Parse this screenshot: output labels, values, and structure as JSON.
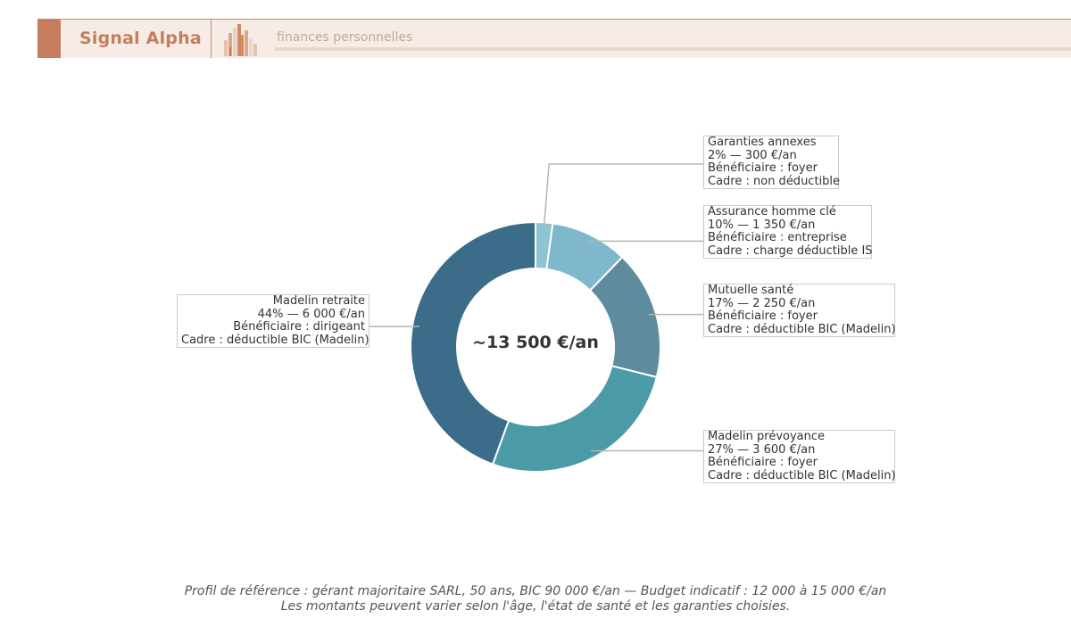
{
  "header": {
    "brand": "Signal Alpha",
    "tagline": "finances personnelles",
    "logo_icon": "bar-chart-logo-icon",
    "accent_color": "#c47d5e"
  },
  "chart_data": {
    "type": "pie",
    "donut": true,
    "title": "",
    "center_label": "~13 500 €/an",
    "slices": [
      {
        "name": "Garanties annexes",
        "percent": 2,
        "value": 300,
        "amount_label": "2% — 300 €/an",
        "beneficiary": "Bénéficiaire : foyer",
        "frame": "Cadre : non déductible",
        "color": "#8dc4cf"
      },
      {
        "name": "Assurance homme clé",
        "percent": 10,
        "value": 1350,
        "amount_label": "10% — 1 350 €/an",
        "beneficiary": "Bénéficiaire : entreprise",
        "frame": "Cadre : charge déductible IS",
        "color": "#7fb8cc"
      },
      {
        "name": "Mutuelle santé",
        "percent": 17,
        "value": 2250,
        "amount_label": "17% — 2 250 €/an",
        "beneficiary": "Bénéficiaire : foyer",
        "frame": "Cadre : déductible BIC (Madelin)",
        "color": "#5e8c9d"
      },
      {
        "name": "Madelin prévoyance",
        "percent": 27,
        "value": 3600,
        "amount_label": "27% — 3 600 €/an",
        "beneficiary": "Bénéficiaire : foyer",
        "frame": "Cadre : déductible BIC (Madelin)",
        "color": "#4a9aa8"
      },
      {
        "name": "Madelin retraite",
        "percent": 44,
        "value": 6000,
        "amount_label": "44% — 6 000 €/an",
        "beneficiary": "Bénéficiaire : dirigeant",
        "frame": "Cadre : déductible BIC (Madelin)",
        "color": "#3b6d8a"
      }
    ]
  },
  "footer": {
    "line1": "Profil de référence : gérant majoritaire SARL, 50 ans, BIC 90 000 €/an — Budget indicatif : 12 000 à 15 000 €/an",
    "line2": "Les montants peuvent varier selon l'âge, l'état de santé et les garanties choisies."
  }
}
